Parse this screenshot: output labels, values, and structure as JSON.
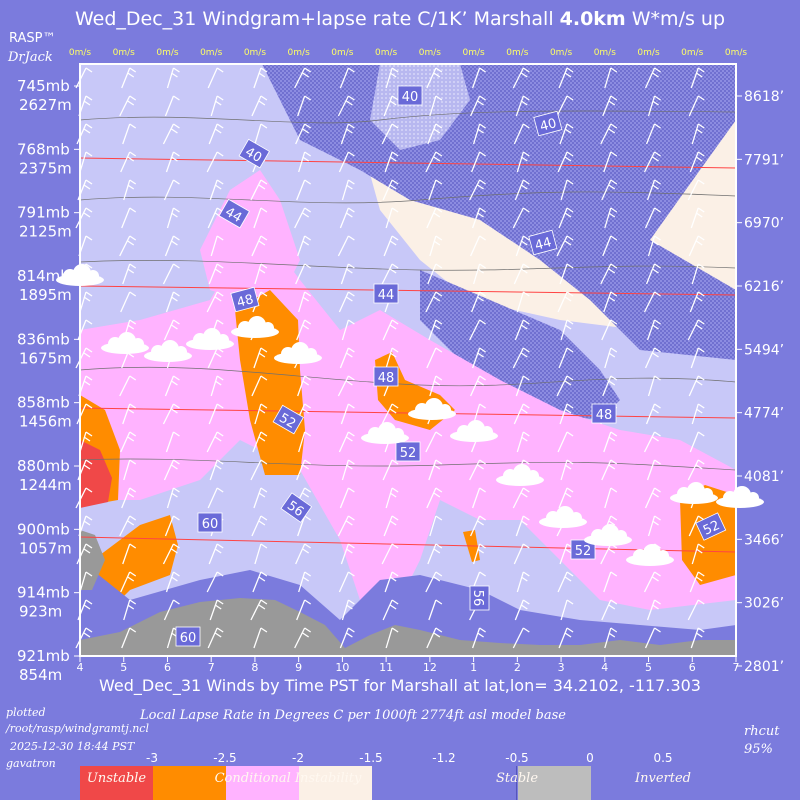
{
  "header": {
    "title_prefix": "Wed_Dec_31 Windgram+lapse rate C/1K’  Marshall ",
    "title_bold": "4.0km",
    "title_suffix": "  W*m/s up",
    "brand": "RASP™",
    "brand_sub": "DrJack"
  },
  "footer": {
    "title": "Wed_Dec_31 Winds by Time PST for Marshall at lat,lon= 34.2102, -117.303",
    "subtitle": "Local Lapse Rate in Degrees C per 1000ft  2774ft asl model base",
    "plotted_label": "plotted",
    "path": "/root/rasp/windgramtj.ncl",
    "timestamp": "2025-12-30 18:44 PST",
    "user": "gavatron",
    "rhcut_label": "rhcut",
    "rhcut_value": "95%"
  },
  "legend": {
    "scale_values": [
      "-3",
      "-2.5",
      "-2",
      "-1.5",
      "-1.2",
      "-0.5",
      "0",
      "0.5"
    ],
    "categories": [
      {
        "label": "Unstable",
        "color": "#f04848"
      },
      {
        "label": "Conditional Instability",
        "color": "#ff8c00"
      },
      {
        "label": "",
        "color": "#ffb3ff"
      },
      {
        "label": "",
        "color": "#fbf0e6"
      },
      {
        "label": "Stable",
        "color": "#7b7bdd"
      },
      {
        "label": "Inverted",
        "color": "#bdbdbd"
      }
    ]
  },
  "colors": {
    "background": "#7b7bdd",
    "unstable": "#f04848",
    "conditional": "#ff8c00",
    "pink": "#ffb3ff",
    "cream": "#fbf0e6",
    "lavender": "#c8c8f8",
    "stable": "#7b7bdd",
    "terrain": "#999999",
    "level_line": "#ff4444",
    "wstar_label": "#ffff66"
  },
  "chart_data": {
    "type": "heatmap",
    "x_ticks": [
      "4",
      "5",
      "6",
      "7",
      "8",
      "9",
      "10",
      "11",
      "12",
      "1",
      "2",
      "3",
      "4",
      "5",
      "6",
      "7"
    ],
    "wstar_labels": [
      "0m/s",
      "0m/s",
      "0m/s",
      "0m/s",
      "0m/s",
      "0m/s",
      "0m/s",
      "0m/s",
      "0m/s",
      "0m/s",
      "0m/s",
      "0m/s",
      "0m/s",
      "0m/s",
      "0m/s",
      "0m/s"
    ],
    "pressure_levels": [
      {
        "mb": "745mb",
        "m": "2627m",
        "ft": "8618’"
      },
      {
        "mb": "768mb",
        "m": "2375m",
        "ft": "7791’"
      },
      {
        "mb": "791mb",
        "m": "2125m",
        "ft": "6970’"
      },
      {
        "mb": "814mb",
        "m": "1895m",
        "ft": "6216’"
      },
      {
        "mb": "836mb",
        "m": "1675m",
        "ft": "5494’"
      },
      {
        "mb": "858mb",
        "m": "1456m",
        "ft": "4774’"
      },
      {
        "mb": "880mb",
        "m": "1244m",
        "ft": "4081’"
      },
      {
        "mb": "900mb",
        "m": "1057m",
        "ft": "3466’"
      },
      {
        "mb": "914mb",
        "m": "923m",
        "ft": "3026’"
      },
      {
        "mb": "921mb",
        "m": "854m",
        "ft": "2801’"
      }
    ],
    "contour_labels": [
      "40",
      "40",
      "40",
      "44",
      "44",
      "44",
      "48",
      "48",
      "48",
      "52",
      "52",
      "52",
      "52",
      "56",
      "56",
      "60",
      "60"
    ]
  }
}
